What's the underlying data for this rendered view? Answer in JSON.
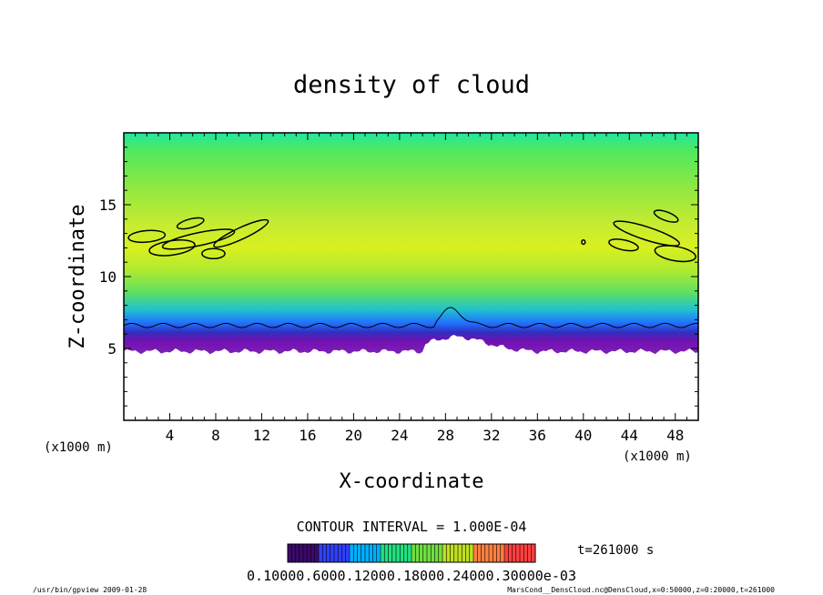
{
  "chart_data": {
    "type": "heatmap",
    "title": "density of cloud",
    "xlabel": "X-coordinate",
    "ylabel": "Z-coordinate",
    "x_unit_left": "(x1000 m)",
    "x_unit_right": "(x1000 m)",
    "xlim": [
      0,
      50
    ],
    "ylim": [
      0,
      20
    ],
    "xticks": [
      4,
      8,
      12,
      16,
      20,
      24,
      28,
      32,
      36,
      40,
      44,
      48
    ],
    "yticks": [
      5,
      10,
      15
    ],
    "field": {
      "empty_below_z": 4.6,
      "base_z_edges": 4.8,
      "base_z_center_28": 5.8,
      "top_band_z": 19.5
    },
    "contour_interval_text": "CONTOUR INTERVAL = 1.000E-04",
    "time_text": "t=261000 s",
    "colorbar_labels_text": "0.10000.6000.12000.18000.24000.30000e-03",
    "colorbar_colors": [
      "#3a0a6a",
      "#3040ff",
      "#00b0ff",
      "#20e080",
      "#70e040",
      "#c0e020",
      "#ff8040",
      "#ff4040"
    ],
    "footer_left": "/usr/bin/gpview   2009-01-28",
    "footer_right": "MarsCond__DensCloud.nc@DensCloud,x=0:50000,z=0:20000,t=261000"
  }
}
